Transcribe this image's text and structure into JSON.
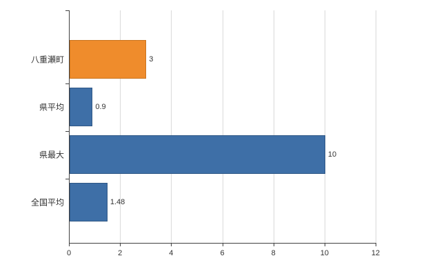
{
  "chart_data": {
    "type": "bar",
    "orientation": "horizontal",
    "title": "",
    "categories": [
      "八重瀬町",
      "県平均",
      "県最大",
      "全国平均"
    ],
    "values": [
      3,
      0.9,
      10,
      1.48
    ],
    "value_labels": [
      "3",
      "0.9",
      "10",
      "1.48"
    ],
    "bar_colors": [
      "#ef8c2c",
      "#3e6fa7",
      "#3e6fa7",
      "#3e6fa7"
    ],
    "bar_border_colors": [
      "#c9731d",
      "#2f5785",
      "#2f5785",
      "#2f5785"
    ],
    "xlim": [
      0,
      12
    ],
    "x_ticks": [
      "0",
      "2",
      "4",
      "6",
      "8",
      "10",
      "12"
    ],
    "grid": true,
    "legend": "none",
    "background": "#ffffff",
    "grid_color": "#d9d9d9",
    "axis_color": "#404040",
    "label_color": "#333333"
  }
}
